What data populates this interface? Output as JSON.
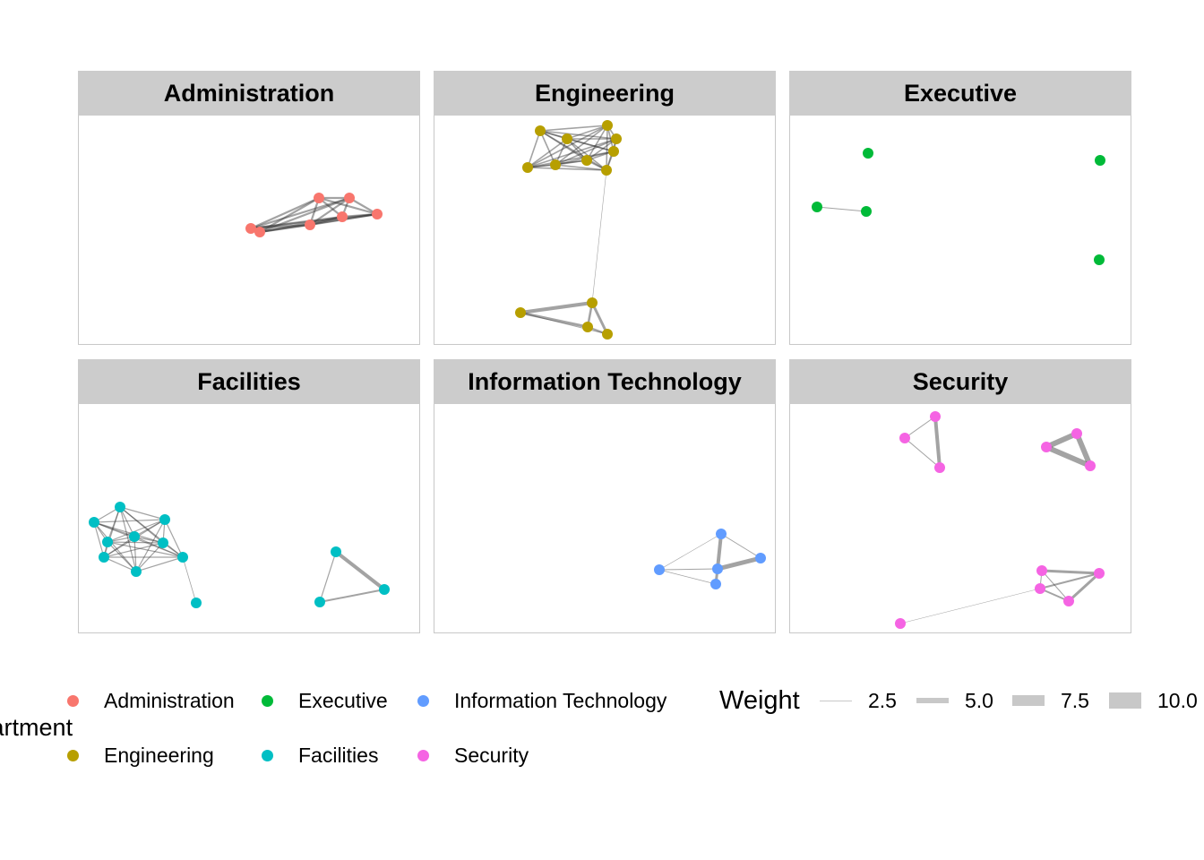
{
  "colors": {
    "Administration": "#F8766D",
    "Engineering": "#B79F00",
    "Executive": "#00BA38",
    "Facilities": "#00BFC4",
    "Information Technology": "#619CFF",
    "Security": "#F564E3",
    "strip": "#cccccc",
    "edge": "#333333"
  },
  "panels": [
    {
      "title": "Administration",
      "color_key": "Administration"
    },
    {
      "title": "Engineering",
      "color_key": "Engineering"
    },
    {
      "title": "Executive",
      "color_key": "Executive"
    },
    {
      "title": "Facilities",
      "color_key": "Facilities"
    },
    {
      "title": "Information Technology",
      "color_key": "Information Technology"
    },
    {
      "title": "Security",
      "color_key": "Security"
    }
  ],
  "legend": {
    "department_title": "Department",
    "departments": [
      {
        "label": "Administration",
        "color_key": "Administration"
      },
      {
        "label": "Engineering",
        "color_key": "Engineering"
      },
      {
        "label": "Executive",
        "color_key": "Executive"
      },
      {
        "label": "Facilities",
        "color_key": "Facilities"
      },
      {
        "label": "Information Technology",
        "color_key": "Information Technology"
      },
      {
        "label": "Security",
        "color_key": "Security"
      }
    ],
    "weight_title": "Weight",
    "weights": [
      {
        "label": "2.5",
        "value": 2.5
      },
      {
        "label": "5.0",
        "value": 5.0
      },
      {
        "label": "7.5",
        "value": 7.5
      },
      {
        "label": "10.0",
        "value": 10.0
      }
    ]
  }
}
